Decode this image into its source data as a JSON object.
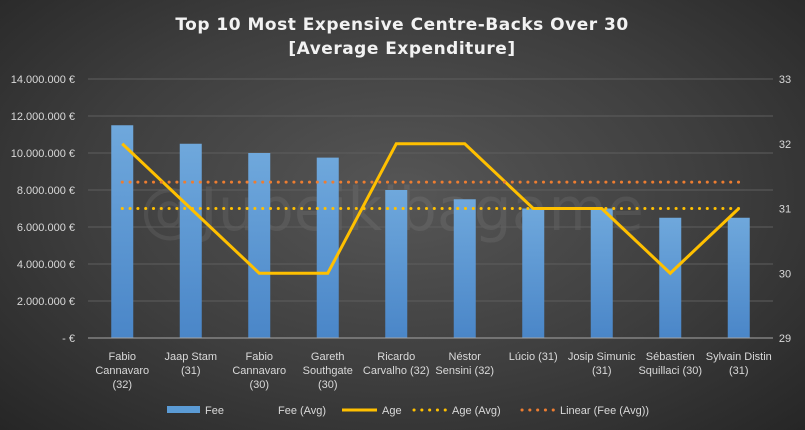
{
  "chart_data": {
    "type": "bar+line",
    "title": [
      "Top 10 Most Expensive Centre-Backs Over 30",
      "[Average Expenditure]"
    ],
    "watermark": "@Jubeikibagame",
    "categories": [
      [
        "Fabio",
        "Cannavaro",
        "(32)"
      ],
      [
        "Jaap Stam",
        "(31)"
      ],
      [
        "Fabio",
        "Cannavaro",
        "(30)"
      ],
      [
        "Gareth",
        "Southgate",
        "(30)"
      ],
      [
        "Ricardo",
        "Carvalho (32)"
      ],
      [
        "Néstor",
        "Sensini (32)"
      ],
      [
        "Lúcio (31)"
      ],
      [
        "Josip Simunic",
        "(31)"
      ],
      [
        "Sébastien",
        "Squillaci (30)"
      ],
      [
        "Sylvain Distin",
        "(31)"
      ]
    ],
    "series": [
      {
        "name": "Fee",
        "type": "bar",
        "axis": "left",
        "color": "#5b9bd5",
        "values": [
          11500000,
          10500000,
          10000000,
          9750000,
          8000000,
          7500000,
          7000000,
          7000000,
          6500000,
          6500000
        ]
      },
      {
        "name": "Fee (Avg)",
        "type": "line",
        "axis": "left",
        "color": "none",
        "values": [
          8425000,
          8425000,
          8425000,
          8425000,
          8425000,
          8425000,
          8425000,
          8425000,
          8425000,
          8425000
        ]
      },
      {
        "name": "Age",
        "type": "line",
        "axis": "right",
        "color": "#ffc000",
        "values": [
          32,
          31,
          30,
          30,
          32,
          32,
          31,
          31,
          30,
          31
        ]
      },
      {
        "name": "Age (Avg)",
        "type": "dotted",
        "axis": "right",
        "color": "#ffc000",
        "values": [
          31,
          31,
          31,
          31,
          31,
          31,
          31,
          31,
          31,
          31
        ]
      },
      {
        "name": "Linear (Fee (Avg))",
        "type": "dotted",
        "axis": "left",
        "color": "#ed7d31",
        "values": [
          8425000,
          8425000,
          8425000,
          8425000,
          8425000,
          8425000,
          8425000,
          8425000,
          8425000,
          8425000
        ]
      }
    ],
    "y_left": {
      "range": [
        0,
        14000000
      ],
      "ticks": [
        "- €",
        "2.000.000 €",
        "4.000.000 €",
        "6.000.000 €",
        "8.000.000 €",
        "10.000.000 €",
        "12.000.000 €",
        "14.000.000 €"
      ]
    },
    "y_right": {
      "range": [
        29,
        33
      ],
      "ticks": [
        "29",
        "30",
        "31",
        "32",
        "33"
      ]
    },
    "grid": true,
    "legend": "bottom"
  }
}
